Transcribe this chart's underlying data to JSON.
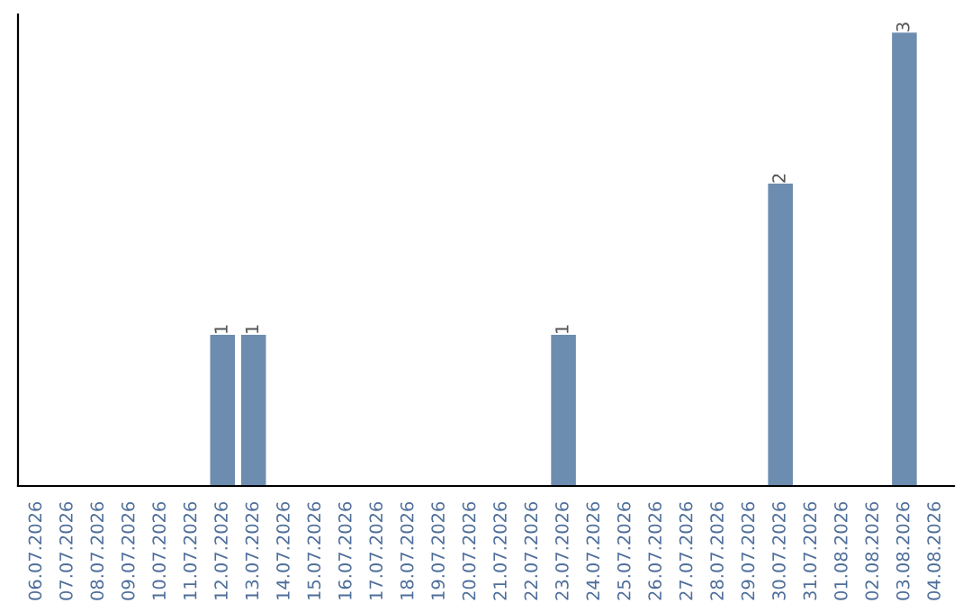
{
  "chart_data": {
    "type": "bar",
    "categories": [
      "06.07.2026",
      "07.07.2026",
      "08.07.2026",
      "09.07.2026",
      "10.07.2026",
      "11.07.2026",
      "12.07.2026",
      "13.07.2026",
      "14.07.2026",
      "15.07.2026",
      "16.07.2026",
      "17.07.2026",
      "18.07.2026",
      "19.07.2026",
      "20.07.2026",
      "21.07.2026",
      "22.07.2026",
      "23.07.2026",
      "24.07.2026",
      "25.07.2026",
      "26.07.2026",
      "27.07.2026",
      "28.07.2026",
      "29.07.2026",
      "30.07.2026",
      "31.07.2026",
      "01.08.2026",
      "02.08.2026",
      "03.08.2026",
      "04.08.2026"
    ],
    "values": [
      0,
      0,
      0,
      0,
      0,
      0,
      1,
      1,
      0,
      0,
      0,
      0,
      0,
      0,
      0,
      0,
      0,
      1,
      0,
      0,
      0,
      0,
      0,
      0,
      2,
      0,
      0,
      0,
      3,
      0
    ],
    "value_labels": [
      null,
      null,
      null,
      null,
      null,
      null,
      "1",
      "1",
      null,
      null,
      null,
      null,
      null,
      null,
      null,
      null,
      null,
      "1",
      null,
      null,
      null,
      null,
      null,
      null,
      "2",
      null,
      null,
      null,
      "3",
      null
    ],
    "color": "#6d8db0",
    "tick_labels": "x",
    "grid": false
  }
}
